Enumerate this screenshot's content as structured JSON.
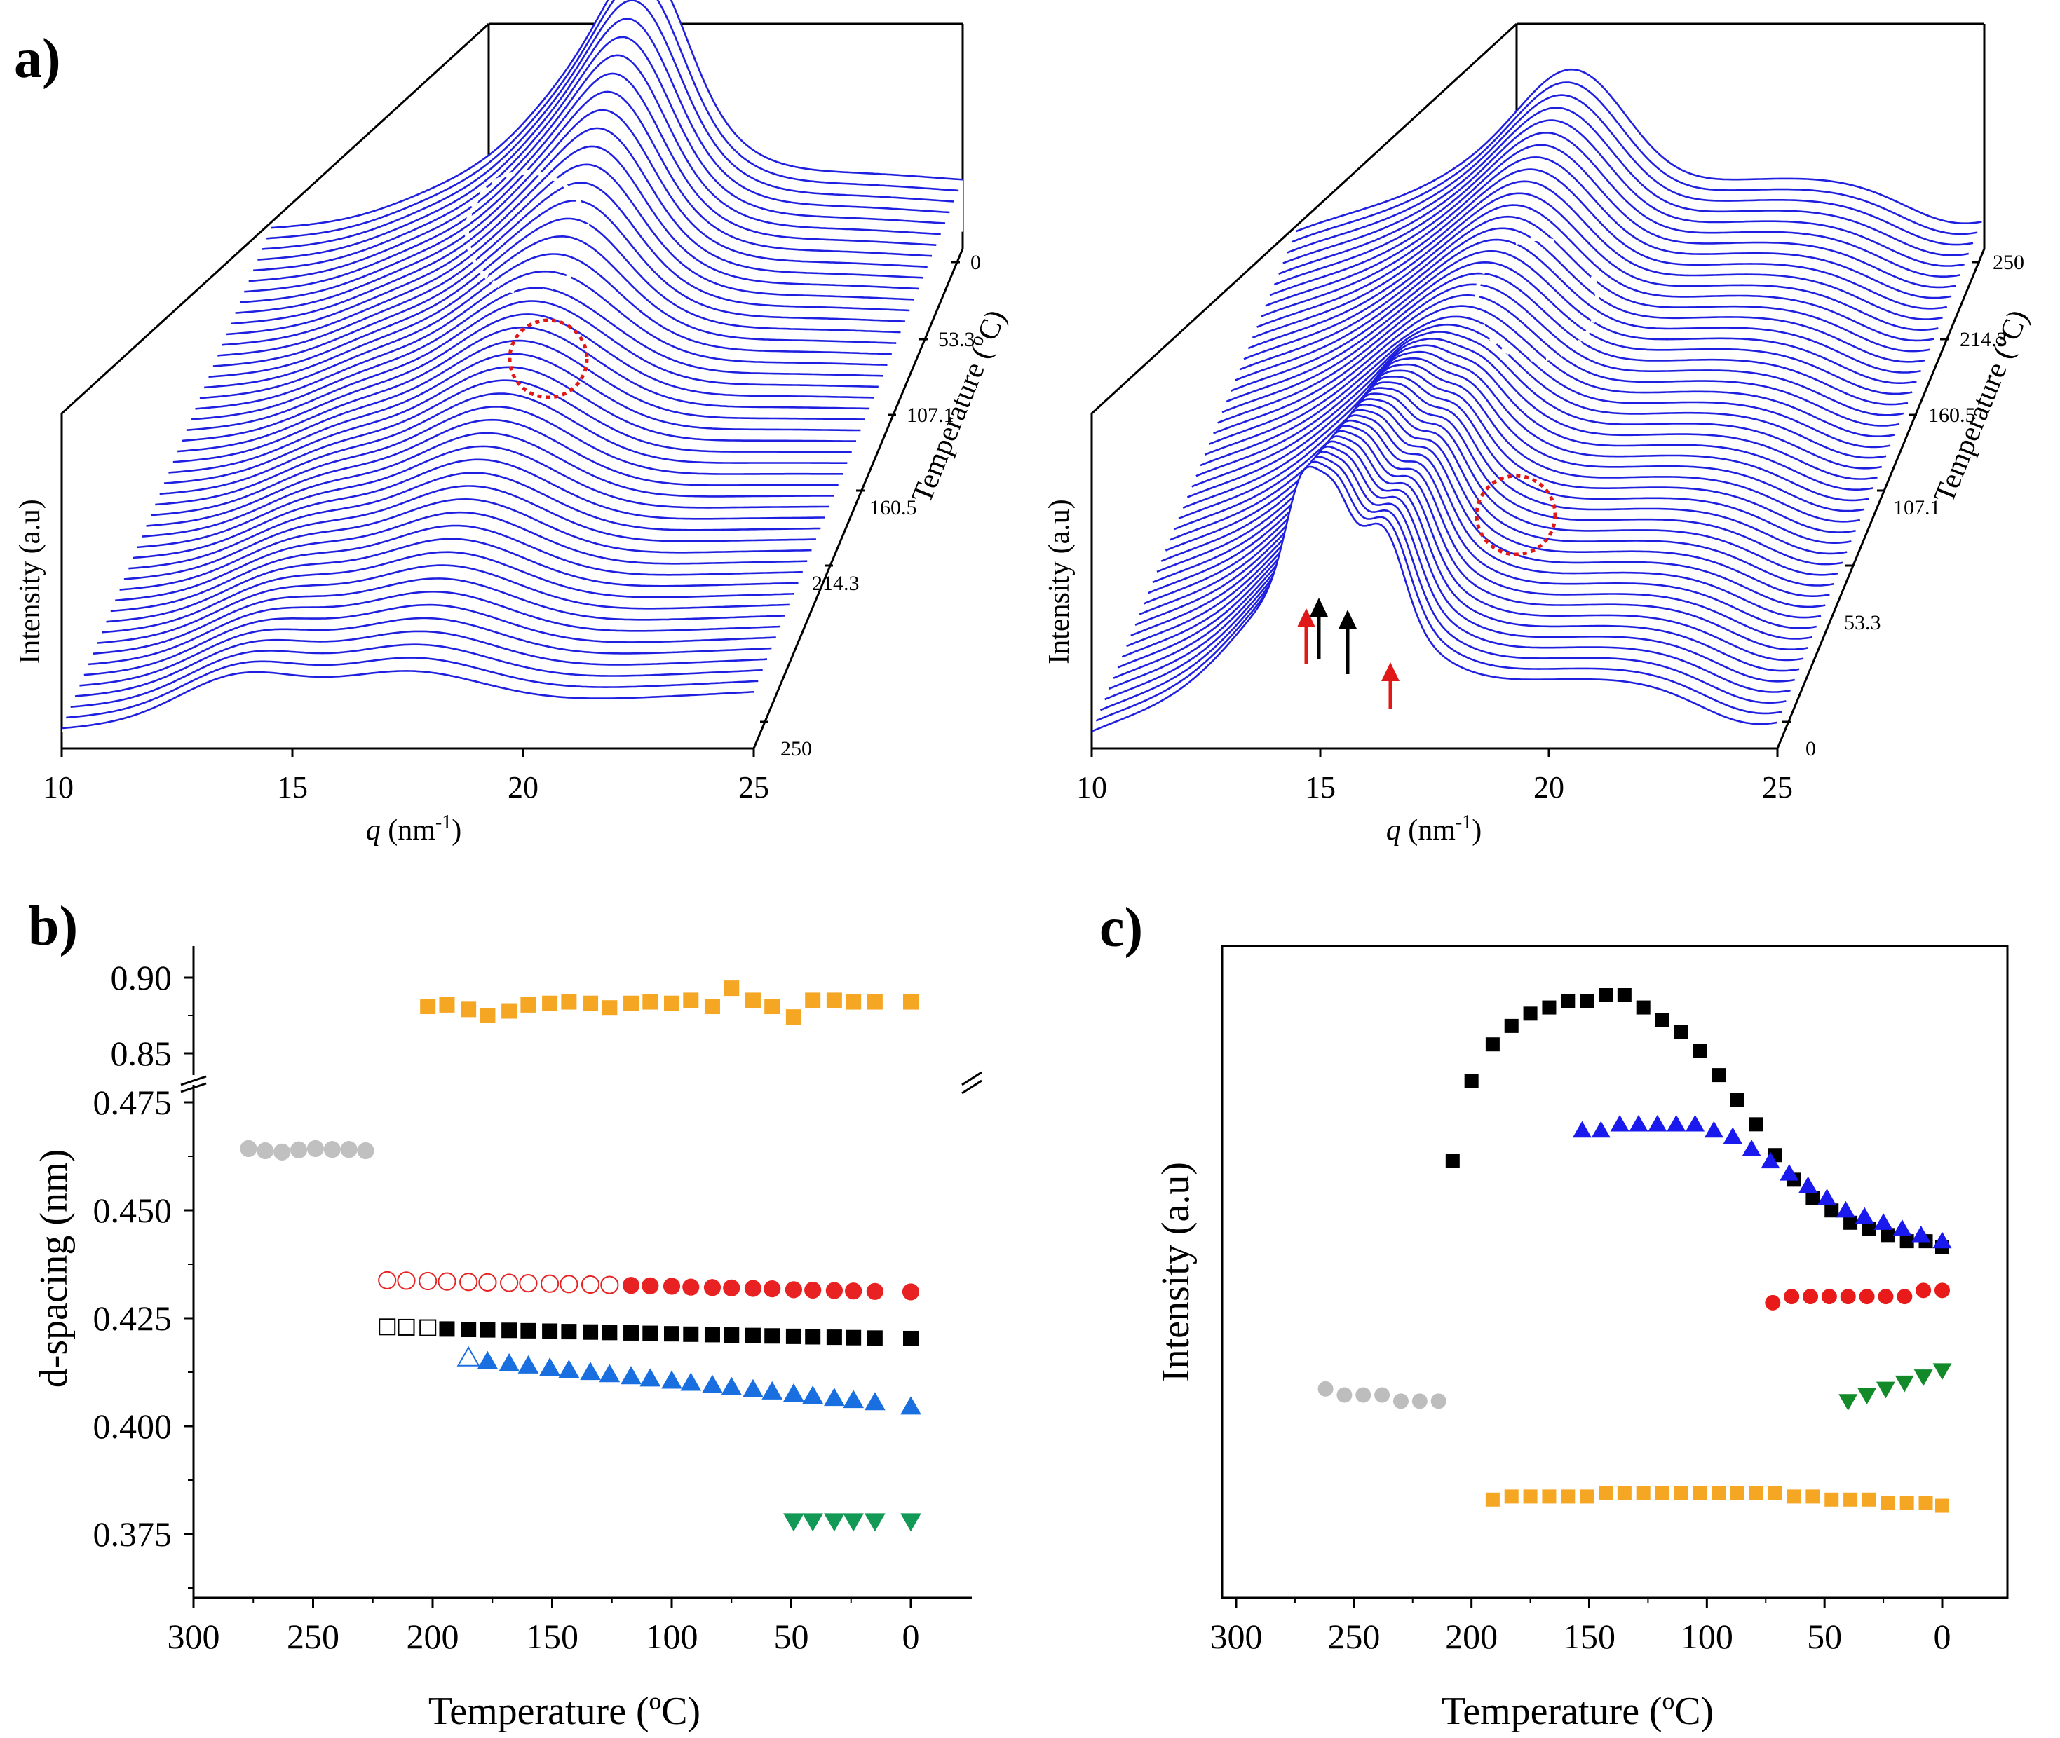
{
  "chart_data": [
    {
      "panel": "a-left",
      "type": "waterfall",
      "panel_label": "a)",
      "xlabel_italic": "q",
      "xlabel_rest": " (nm",
      "xlabel_sup": "-1",
      "xlabel_close": ")",
      "ylabel": "Intensity (a.u)",
      "zlabel": "Temperature (",
      "zlabel_sup": "o",
      "zlabel_close": "C)",
      "xlim": [
        10,
        25
      ],
      "xticks": [
        "10",
        "15",
        "20",
        "25"
      ],
      "zticks": [
        "0",
        "53.3",
        "107.1",
        "160.5",
        "214.3",
        "250"
      ],
      "line_color": "#1f1fe0",
      "n_curves": 48,
      "mode": "heating",
      "annotations": [
        "white dashed circle",
        "red dotted circle"
      ]
    },
    {
      "panel": "a-right",
      "type": "waterfall",
      "xlabel_italic": "q",
      "xlabel_rest": " (nm",
      "xlabel_sup": "-1",
      "xlabel_close": ")",
      "ylabel": "Intensity (a.u)",
      "zlabel": "Temperature (",
      "zlabel_sup": "o",
      "zlabel_close": "C)",
      "xlim": [
        10,
        25
      ],
      "xticks": [
        "10",
        "15",
        "20",
        "25"
      ],
      "zticks": [
        "250",
        "214.3",
        "160.5",
        "107.1",
        "53.3",
        "0"
      ],
      "line_color": "#1f1fe0",
      "n_curves": 48,
      "mode": "cooling",
      "annotations": [
        "white dashed circle",
        "red dotted circle",
        "2 red arrows",
        "2 black arrows"
      ]
    },
    {
      "panel": "b",
      "type": "scatter",
      "panel_label": "b)",
      "xlabel": "Temperature (ºC)",
      "ylabel": "d-spacing (nm)",
      "xlim": [
        300,
        0
      ],
      "xticks": [
        "300",
        "250",
        "200",
        "150",
        "100",
        "50",
        "0"
      ],
      "ylim_upper": [
        0.835,
        0.915
      ],
      "yticks_upper": [
        "0.90",
        "0.85"
      ],
      "ylim_lower": [
        0.362,
        0.478
      ],
      "yticks_lower": [
        "0.475",
        "0.450",
        "0.425",
        "0.400",
        "0.375"
      ],
      "series": [
        {
          "name": "orange squares",
          "marker": "square",
          "filled": true,
          "color": "#f5a623",
          "axis": "upper",
          "x": [
            202,
            194,
            185,
            177,
            168,
            160,
            151,
            143,
            134,
            126,
            117,
            109,
            100,
            92,
            83,
            75,
            66,
            58,
            49,
            41,
            32,
            24,
            15,
            0
          ],
          "y": [
            0.881,
            0.882,
            0.879,
            0.875,
            0.878,
            0.882,
            0.883,
            0.884,
            0.883,
            0.88,
            0.883,
            0.884,
            0.883,
            0.885,
            0.881,
            0.893,
            0.885,
            0.881,
            0.874,
            0.885,
            0.885,
            0.884,
            0.884,
            0.884
          ]
        },
        {
          "name": "grey circles",
          "marker": "circle",
          "filled": true,
          "color": "#c0c0c0",
          "axis": "lower",
          "x": [
            277,
            270,
            263,
            256,
            249,
            242,
            235,
            228
          ],
          "y": [
            0.4643,
            0.4638,
            0.4635,
            0.464,
            0.4643,
            0.4641,
            0.4641,
            0.4638
          ]
        },
        {
          "name": "red circles (open)",
          "marker": "circle",
          "filled": false,
          "color": "#e82222",
          "axis": "lower",
          "x": [
            219,
            211,
            202,
            194,
            185,
            177,
            168,
            160,
            151,
            143,
            134,
            126
          ],
          "y": [
            0.4338,
            0.4337,
            0.4336,
            0.4335,
            0.4334,
            0.4333,
            0.4332,
            0.4331,
            0.433,
            0.4329,
            0.4328,
            0.4327
          ]
        },
        {
          "name": "red circles",
          "marker": "circle",
          "filled": true,
          "color": "#e82222",
          "axis": "lower",
          "x": [
            117,
            109,
            100,
            92,
            83,
            75,
            66,
            58,
            49,
            41,
            32,
            24,
            15,
            0
          ],
          "y": [
            0.4326,
            0.4325,
            0.4324,
            0.4322,
            0.4321,
            0.432,
            0.4319,
            0.4318,
            0.4316,
            0.4315,
            0.4314,
            0.4313,
            0.4312,
            0.4311
          ]
        },
        {
          "name": "black squares (open)",
          "marker": "square",
          "filled": false,
          "color": "#000000",
          "axis": "lower",
          "x": [
            219,
            211,
            202
          ],
          "y": [
            0.423,
            0.4229,
            0.4228
          ]
        },
        {
          "name": "black squares",
          "marker": "square",
          "filled": true,
          "color": "#000000",
          "axis": "lower",
          "x": [
            194,
            185,
            177,
            168,
            160,
            151,
            143,
            134,
            126,
            117,
            109,
            100,
            92,
            83,
            75,
            66,
            58,
            49,
            41,
            32,
            24,
            15,
            0
          ],
          "y": [
            0.4225,
            0.4224,
            0.4223,
            0.4222,
            0.4221,
            0.422,
            0.4219,
            0.4218,
            0.4217,
            0.4216,
            0.4215,
            0.4214,
            0.4213,
            0.4212,
            0.4211,
            0.421,
            0.4209,
            0.4208,
            0.4207,
            0.4206,
            0.4205,
            0.4204,
            0.4203
          ]
        },
        {
          "name": "blue triangle (open)",
          "marker": "triangle-up",
          "filled": false,
          "color": "#1a6fe0",
          "axis": "lower",
          "x": [
            185
          ],
          "y": [
            0.4158
          ]
        },
        {
          "name": "blue triangles",
          "marker": "triangle-up",
          "filled": true,
          "color": "#1a6fe0",
          "axis": "lower",
          "x": [
            177,
            168,
            160,
            151,
            143,
            134,
            126,
            117,
            109,
            100,
            92,
            83,
            75,
            66,
            58,
            49,
            41,
            32,
            24,
            15,
            0
          ],
          "y": [
            0.415,
            0.4145,
            0.414,
            0.4135,
            0.413,
            0.4125,
            0.412,
            0.4115,
            0.411,
            0.4105,
            0.41,
            0.4095,
            0.409,
            0.4085,
            0.408,
            0.4075,
            0.407,
            0.4065,
            0.406,
            0.4055,
            0.4045
          ]
        },
        {
          "name": "green triangles",
          "marker": "triangle-down",
          "filled": true,
          "color": "#119955",
          "axis": "lower",
          "x": [
            49,
            41,
            32,
            24,
            15,
            0
          ],
          "y": [
            0.378,
            0.378,
            0.378,
            0.378,
            0.378,
            0.378
          ]
        }
      ]
    },
    {
      "panel": "c",
      "type": "scatter",
      "panel_label": "c)",
      "xlabel": "Temperature (ºC)",
      "ylabel": "Intensity (a.u)",
      "xlim": [
        300,
        0
      ],
      "xticks": [
        "300",
        "250",
        "200",
        "150",
        "100",
        "50",
        "0"
      ],
      "ylim": [
        0,
        100
      ],
      "series": [
        {
          "name": "black squares",
          "marker": "square",
          "filled": true,
          "color": "#000000",
          "x": [
            208,
            200,
            191,
            183,
            175,
            167,
            159,
            151,
            143,
            135,
            127,
            119,
            111,
            103,
            95,
            87,
            79,
            71,
            63,
            55,
            47,
            39,
            31,
            23,
            15,
            7,
            0
          ],
          "y": [
            63,
            76,
            82,
            85,
            87,
            88,
            89,
            89,
            90,
            90,
            88,
            86,
            84,
            81,
            77,
            73,
            69,
            64,
            60,
            57,
            55,
            53,
            52,
            51,
            50,
            50,
            49
          ]
        },
        {
          "name": "blue triangles",
          "marker": "triangle-up",
          "filled": true,
          "color": "#1a1aee",
          "x": [
            153,
            145,
            137,
            129,
            121,
            113,
            105,
            97,
            89,
            81,
            73,
            65,
            57,
            49,
            41,
            33,
            25,
            17,
            9,
            0
          ],
          "y": [
            68,
            68,
            69,
            69,
            69,
            69,
            69,
            68,
            67,
            65,
            63,
            61,
            59,
            57,
            55,
            54,
            53,
            52,
            51,
            50
          ]
        },
        {
          "name": "red circles",
          "marker": "circle",
          "filled": true,
          "color": "#e81a1a",
          "x": [
            72,
            64,
            56,
            48,
            40,
            32,
            24,
            16,
            8,
            0
          ],
          "y": [
            40,
            41,
            41,
            41,
            41,
            41,
            41,
            41,
            42,
            42
          ]
        },
        {
          "name": "grey circles",
          "marker": "circle",
          "filled": true,
          "color": "#bdbdbd",
          "x": [
            262,
            254,
            246,
            238,
            230,
            222,
            214
          ],
          "y": [
            26,
            25,
            25,
            25,
            24,
            24,
            24
          ]
        },
        {
          "name": "green triangles",
          "marker": "triangle-down",
          "filled": true,
          "color": "#128a2a",
          "x": [
            40,
            32,
            24,
            16,
            8,
            0
          ],
          "y": [
            24,
            25,
            26,
            27,
            28,
            29
          ]
        },
        {
          "name": "orange squares",
          "marker": "square",
          "filled": true,
          "color": "#f5a623",
          "x": [
            191,
            183,
            175,
            167,
            159,
            151,
            143,
            135,
            127,
            119,
            111,
            103,
            95,
            87,
            79,
            71,
            63,
            55,
            47,
            39,
            31,
            23,
            15,
            7,
            0
          ],
          "y": [
            8,
            8.5,
            8.5,
            8.5,
            8.5,
            8.5,
            9,
            9,
            9,
            9,
            9,
            9,
            9,
            9,
            9,
            9,
            8.5,
            8.5,
            8,
            8,
            8,
            7.5,
            7.5,
            7.5,
            7
          ]
        }
      ]
    }
  ]
}
